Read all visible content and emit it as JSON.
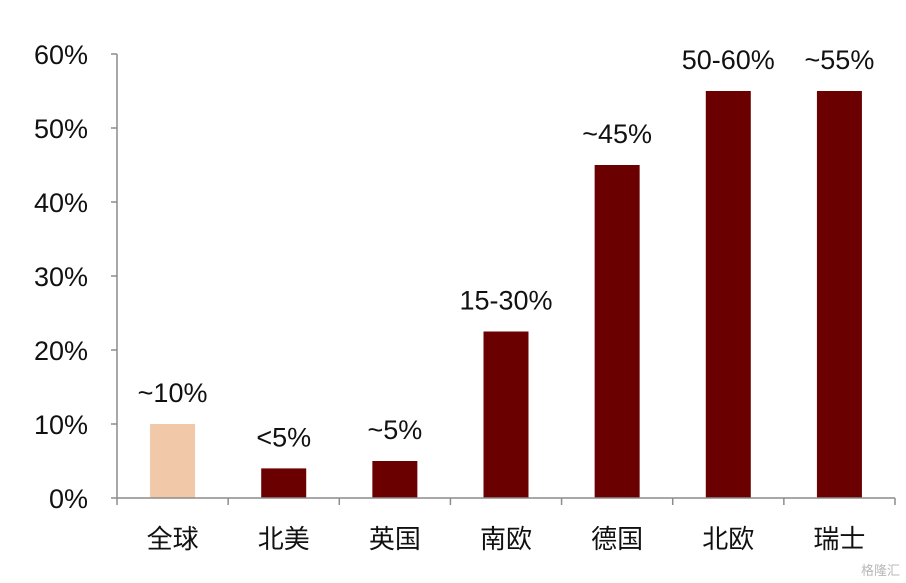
{
  "chart_data": {
    "type": "bar",
    "categories": [
      "全球",
      "北美",
      "英国",
      "南欧",
      "德国",
      "北欧",
      "瑞士"
    ],
    "values": [
      10,
      4,
      5,
      22.5,
      45,
      55,
      55
    ],
    "data_labels": [
      "~10%",
      "<5%",
      "~5%",
      "15-30%",
      "~45%",
      "50-60%",
      "~55%"
    ],
    "ylim": [
      0,
      60
    ],
    "yticks": [
      0,
      10,
      20,
      30,
      40,
      50,
      60
    ],
    "ytick_labels": [
      "0%",
      "10%",
      "20%",
      "30%",
      "40%",
      "50%",
      "60%"
    ],
    "grid": false,
    "colors": {
      "highlight": "#f2c9a8",
      "default": "#6b0000"
    },
    "highlight_index": 0
  },
  "watermark": "格隆汇"
}
